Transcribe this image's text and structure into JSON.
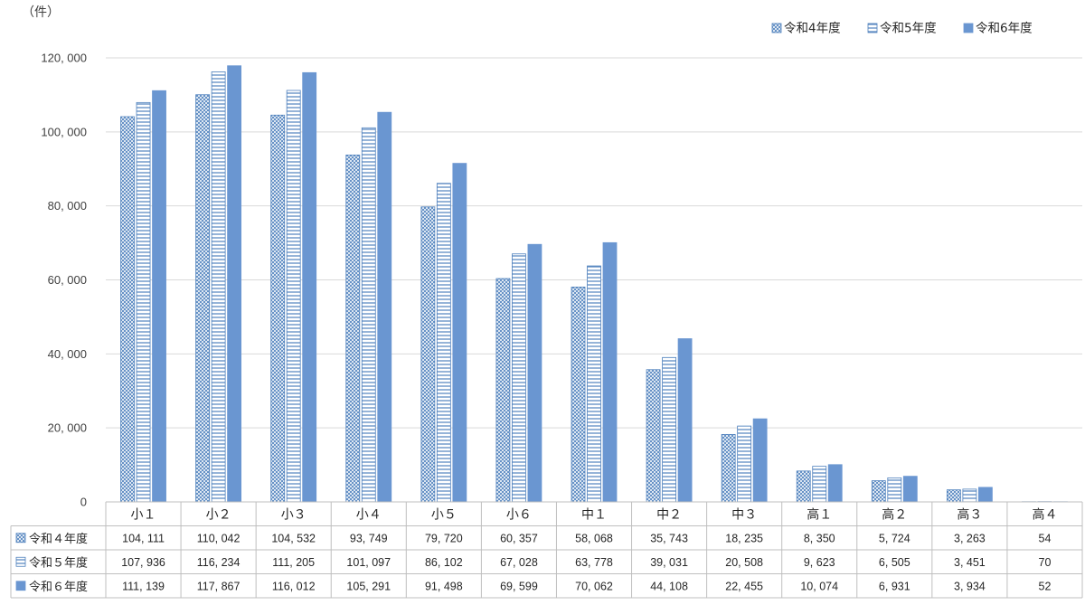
{
  "chart_data": {
    "type": "bar",
    "unit_label": "（件）",
    "categories": [
      "小１",
      "小２",
      "小３",
      "小４",
      "小５",
      "小６",
      "中１",
      "中２",
      "中３",
      "高１",
      "高２",
      "高３",
      "高４"
    ],
    "series": [
      {
        "name": "令和4年度",
        "table_name": "令和４年度",
        "pattern": "cross-hatch",
        "color": "#4f81bd",
        "values": [
          104111,
          110042,
          104532,
          93749,
          79720,
          60357,
          58068,
          35743,
          18235,
          8350,
          5724,
          3263,
          54
        ],
        "value_labels": [
          "104, 111",
          "110, 042",
          "104, 532",
          "93, 749",
          "79, 720",
          "60, 357",
          "58, 068",
          "35, 743",
          "18, 235",
          "8, 350",
          "5, 724",
          "3, 263",
          "54"
        ]
      },
      {
        "name": "令和5年度",
        "table_name": "令和５年度",
        "pattern": "horizontal-stripes",
        "color": "#4f81bd",
        "values": [
          107936,
          116234,
          111205,
          101097,
          86102,
          67028,
          63778,
          39031,
          20508,
          9623,
          6505,
          3451,
          70
        ],
        "value_labels": [
          "107, 936",
          "116, 234",
          "111, 205",
          "101, 097",
          "86, 102",
          "67, 028",
          "63, 778",
          "39, 031",
          "20, 508",
          "9, 623",
          "6, 505",
          "3, 451",
          "70"
        ]
      },
      {
        "name": "令和6年度",
        "table_name": "令和６年度",
        "pattern": "solid",
        "color": "#6a96d1",
        "values": [
          111139,
          117867,
          116012,
          105291,
          91498,
          69599,
          70062,
          44108,
          22455,
          10074,
          6931,
          3934,
          52
        ],
        "value_labels": [
          "111, 139",
          "117, 867",
          "116, 012",
          "105, 291",
          "91, 498",
          "69, 599",
          "70, 062",
          "44, 108",
          "22, 455",
          "10, 074",
          "6, 931",
          "3, 934",
          "52"
        ]
      }
    ],
    "ylim": [
      0,
      120000
    ],
    "yticks": [
      0,
      20000,
      40000,
      60000,
      80000,
      100000,
      120000
    ],
    "ytick_labels": [
      "0",
      "20, 000",
      "40, 000",
      "60, 000",
      "80, 000",
      "100, 000",
      "120, 000"
    ],
    "grid": true,
    "legend_position": "top-right",
    "data_table": true
  }
}
